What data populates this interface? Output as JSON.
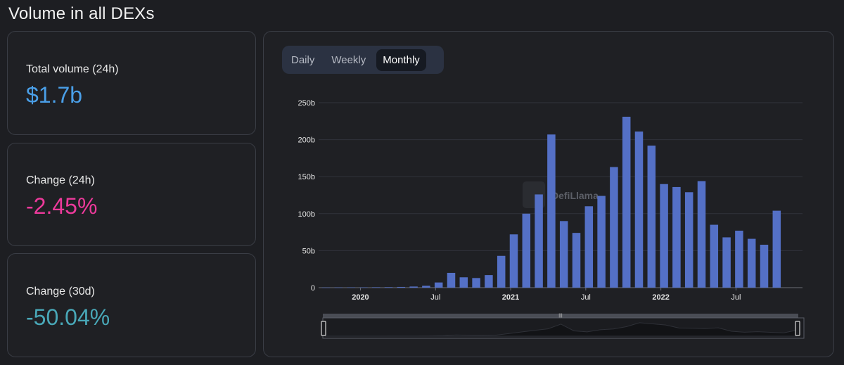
{
  "page": {
    "title": "Volume in all DEXs"
  },
  "stats": [
    {
      "label": "Total volume (24h)",
      "value": "$1.7b",
      "color": "#4a9fe8"
    },
    {
      "label": "Change (24h)",
      "value": "-2.45%",
      "color": "#ec3a9b"
    },
    {
      "label": "Change (30d)",
      "value": "-50.04%",
      "color": "#49a8b8"
    }
  ],
  "tabs": {
    "daily": "Daily",
    "weekly": "Weekly",
    "monthly": "Monthly",
    "selected": "Monthly"
  },
  "watermark": "DefiLlama",
  "colors": {
    "bar": "#5470c6",
    "grid": "#30333b",
    "axis_text": "#e6e6e6"
  },
  "chart_data": {
    "type": "bar",
    "categories": [
      "2019-11",
      "2019-12",
      "2020-01",
      "2020-02",
      "2020-03",
      "2020-04",
      "2020-05",
      "2020-06",
      "2020-07",
      "2020-08",
      "2020-09",
      "2020-10",
      "2020-11",
      "2020-12",
      "2021-01",
      "2021-02",
      "2021-03",
      "2021-04",
      "2021-05",
      "2021-06",
      "2021-07",
      "2021-08",
      "2021-09",
      "2021-10",
      "2021-11",
      "2021-12",
      "2022-01",
      "2022-02",
      "2022-03",
      "2022-04",
      "2022-05",
      "2022-06",
      "2022-07",
      "2022-08",
      "2022-09",
      "2022-10",
      "2022-11"
    ],
    "values": [
      0.2,
      0.3,
      0.4,
      0.4,
      0.6,
      0.7,
      1.0,
      1.5,
      2.5,
      7,
      20,
      14,
      13,
      17,
      43,
      72,
      100,
      126,
      207,
      90,
      74,
      110,
      124,
      163,
      231,
      211,
      192,
      140,
      136,
      129,
      144,
      85,
      68,
      77,
      66,
      58,
      104
    ],
    "x_ticks": [
      "2020",
      "Jul",
      "2021",
      "Jul",
      "2022",
      "Jul"
    ],
    "y_ticks": [
      "0",
      "50b",
      "100b",
      "150b",
      "200b",
      "250b"
    ],
    "ylim": [
      0,
      250
    ],
    "grid": true,
    "legend": "none",
    "unit": "billions USD"
  }
}
